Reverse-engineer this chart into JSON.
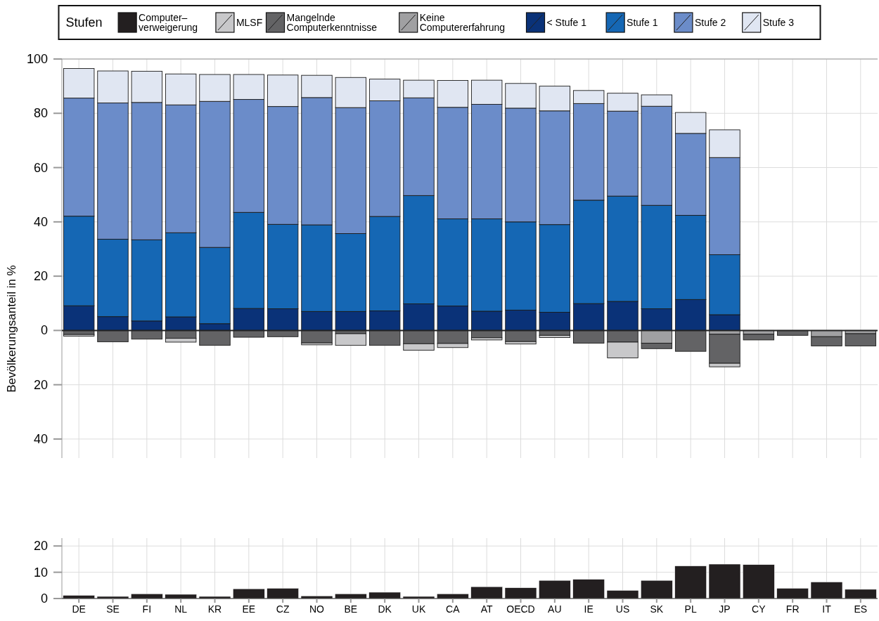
{
  "chart_data": [
    {
      "type": "bar",
      "stacked": true,
      "ylabel": "Bevölkerungsanteil in %",
      "legend_title": "Stufen",
      "legend": "top",
      "grid": true,
      "tick_labels": "y",
      "categories": [
        "DE",
        "SE",
        "FI",
        "NL",
        "KR",
        "EE",
        "CZ",
        "NO",
        "BE",
        "DK",
        "UK",
        "CA",
        "AT",
        "OECD",
        "AU",
        "IE",
        "US",
        "SK",
        "PL",
        "JP",
        "CY",
        "FR",
        "IT",
        "ES"
      ],
      "ylim": [
        -47,
        100
      ],
      "yticks": [
        {
          "value": -40,
          "label": "40"
        },
        {
          "value": -20,
          "label": "20"
        },
        0,
        20,
        40,
        60,
        80,
        100
      ],
      "series": [
        {
          "name": "< Stufe 1",
          "color": "#0a3278",
          "values": [
            9.1,
            5.1,
            3.5,
            5.0,
            2.5,
            8.1,
            8.0,
            7.0,
            7.0,
            7.2,
            9.8,
            9.0,
            7.1,
            7.5,
            6.7,
            9.9,
            10.7,
            8.0,
            11.4,
            5.8,
            null,
            null,
            null,
            null
          ]
        },
        {
          "name": "Stufe 1",
          "color": "#1567b4",
          "values": [
            33.0,
            28.5,
            29.9,
            31.0,
            28.1,
            35.4,
            31.1,
            31.9,
            28.7,
            34.8,
            39.9,
            32.1,
            34.0,
            32.5,
            32.3,
            38.1,
            38.8,
            38.1,
            31.0,
            22.1,
            null,
            null,
            null,
            null
          ]
        },
        {
          "name": "Stufe 2",
          "color": "#6b8cc9",
          "values": [
            43.5,
            50.2,
            50.6,
            47.1,
            53.8,
            41.6,
            43.4,
            46.9,
            46.4,
            42.6,
            36.0,
            41.1,
            42.2,
            41.9,
            41.9,
            35.6,
            31.3,
            36.5,
            30.2,
            35.8,
            null,
            null,
            null,
            null
          ]
        },
        {
          "name": "Stufe 3",
          "color": "#e0e6f2",
          "values": [
            10.9,
            11.8,
            11.5,
            11.4,
            9.9,
            9.2,
            11.6,
            8.2,
            11.1,
            8.0,
            6.5,
            9.9,
            8.9,
            9.1,
            9.1,
            4.8,
            6.6,
            4.2,
            7.7,
            10.2,
            null,
            null,
            null,
            null
          ]
        },
        {
          "name": "Keine\nComputererfahrung",
          "color": "#a0a0a2",
          "values": [
            null,
            null,
            null,
            null,
            null,
            null,
            null,
            null,
            null,
            null,
            null,
            null,
            null,
            null,
            null,
            null,
            null,
            -4.7,
            null,
            -1.4,
            -1.4,
            null,
            -2.3,
            -1.2
          ]
        },
        {
          "name": "Mangelnde\nComputerkenntnisse",
          "color": "#636365",
          "values": [
            -1.5,
            -4.2,
            -3.2,
            -2.9,
            -5.5,
            -2.5,
            -2.3,
            -4.6,
            -1.2,
            -5.5,
            -4.9,
            -4.8,
            -2.7,
            -4.1,
            -1.8,
            -4.7,
            -4.3,
            -2.0,
            -7.7,
            -10.7,
            -2.1,
            -1.8,
            -3.4,
            -4.5
          ]
        },
        {
          "name": "MLSF",
          "color": "#c8c8ca",
          "values": [
            -0.6,
            null,
            null,
            -1.4,
            null,
            null,
            null,
            -0.7,
            -4.3,
            null,
            -2.4,
            -1.5,
            -0.8,
            -0.9,
            -0.8,
            null,
            -5.8,
            null,
            null,
            -1.3,
            null,
            null,
            null,
            null
          ]
        }
      ]
    },
    {
      "type": "bar",
      "grid": true,
      "legend": "top",
      "categories": [
        "DE",
        "SE",
        "FI",
        "NL",
        "KR",
        "EE",
        "CZ",
        "NO",
        "BE",
        "DK",
        "UK",
        "CA",
        "AT",
        "OECD",
        "AU",
        "IE",
        "US",
        "SK",
        "PL",
        "JP",
        "CY",
        "FR",
        "IT",
        "ES"
      ],
      "ylim": [
        0,
        23
      ],
      "yticks": [
        0,
        10,
        20
      ],
      "series": [
        {
          "name": "Computer–\nverweigerung",
          "color": "#231f20",
          "values": [
            1.2,
            0.8,
            1.8,
            1.6,
            0.8,
            3.7,
            3.9,
            1.0,
            1.8,
            2.4,
            0.8,
            1.8,
            4.5,
            4.1,
            6.9,
            7.3,
            3.1,
            6.9,
            12.4,
            13.1,
            12.9,
            3.9,
            6.3,
            3.5
          ]
        }
      ]
    }
  ]
}
